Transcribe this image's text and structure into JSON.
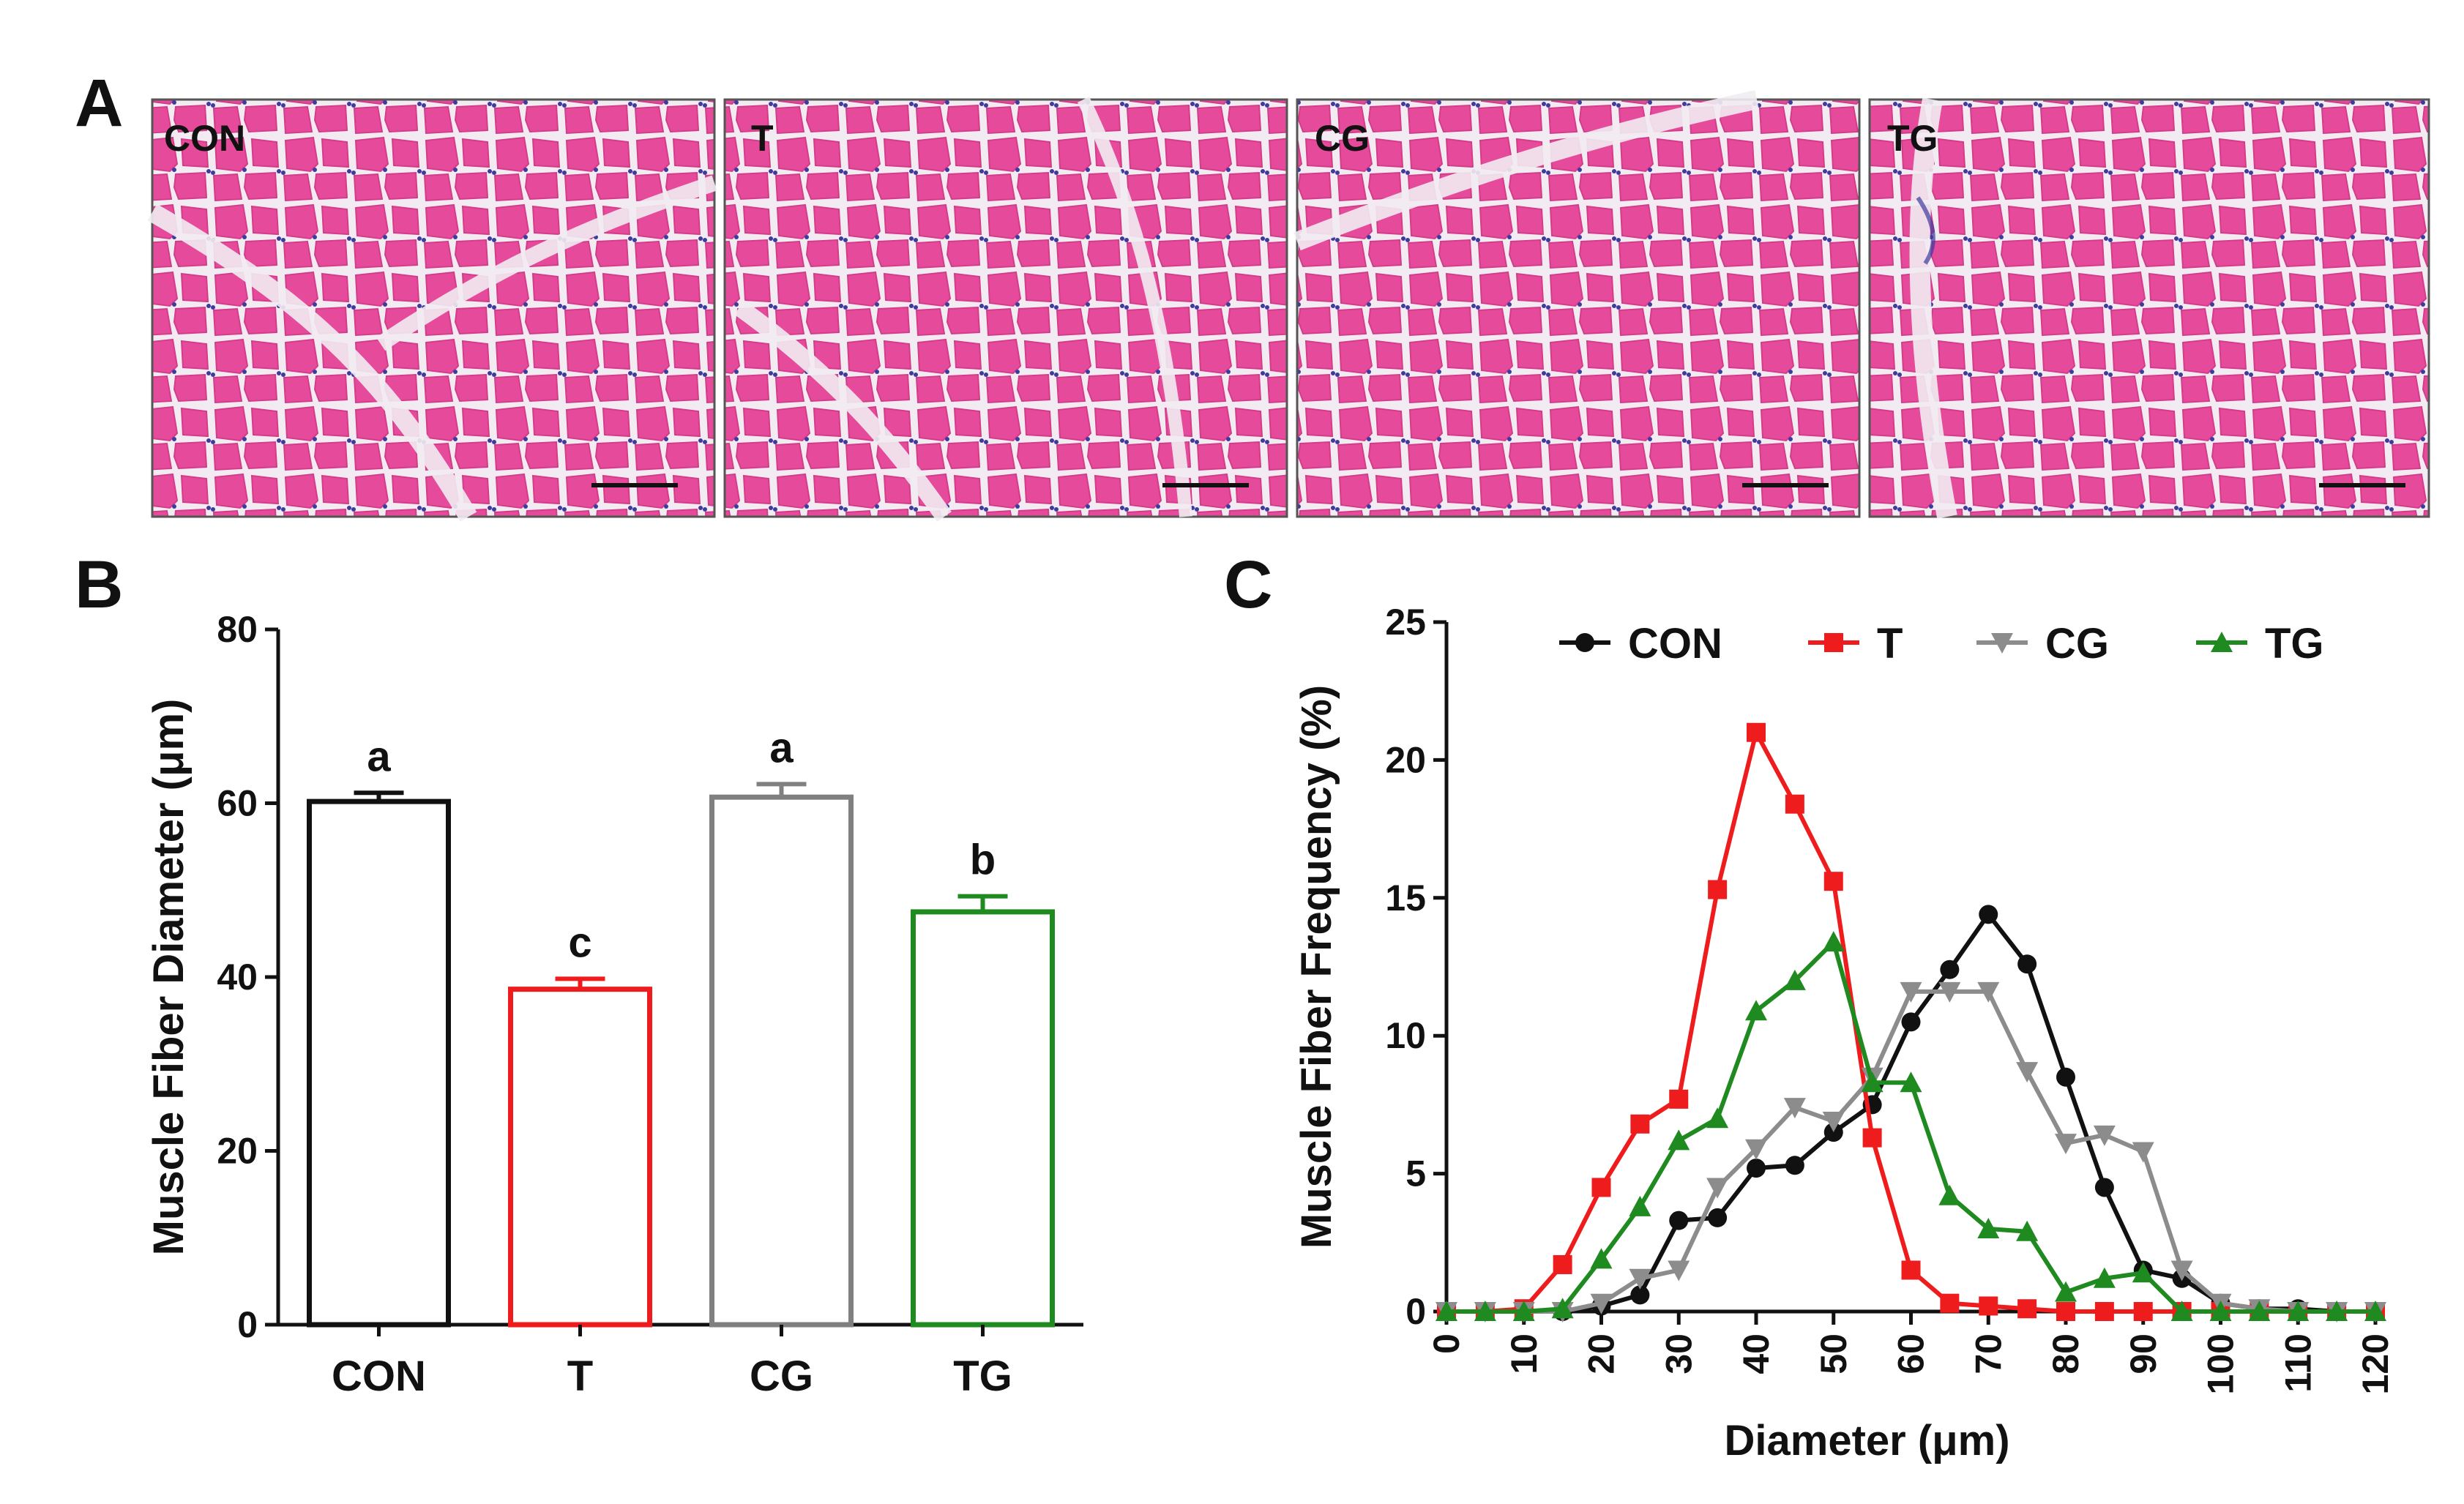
{
  "panels": {
    "a": {
      "letter": "A",
      "micrographs": [
        "CON",
        "T",
        "CG",
        "TG"
      ]
    },
    "b": {
      "letter": "B"
    },
    "c": {
      "letter": "C"
    }
  },
  "colors": {
    "tissue_bg": "#f2ecf2",
    "fiber": "#e64a9a",
    "fiber_edge": "#d43c8a",
    "nucleus": "#3f3a9e",
    "scale_bar": "#111111"
  },
  "chart_data": [
    {
      "type": "bar",
      "panel": "B",
      "categories": [
        "CON",
        "T",
        "CG",
        "TG"
      ],
      "values": [
        60.2,
        38.6,
        60.7,
        47.5
      ],
      "errors": [
        1.0,
        1.2,
        1.5,
        1.8
      ],
      "significance": [
        "a",
        "c",
        "a",
        "b"
      ],
      "colors": [
        "#111111",
        "#ee1c1c",
        "#808080",
        "#1f8a1f"
      ],
      "ylabel": "Muscle Fiber Diameter (μm)",
      "xlabel": "",
      "ylim": [
        0,
        80
      ],
      "yticks": [
        0,
        20,
        40,
        60,
        80
      ],
      "ytick_labels": [
        "0",
        "20",
        "40",
        "60",
        "80"
      ],
      "grid": false
    },
    {
      "type": "line",
      "panel": "C",
      "x": [
        0,
        5,
        10,
        15,
        20,
        25,
        30,
        35,
        40,
        45,
        50,
        55,
        60,
        65,
        70,
        75,
        80,
        85,
        90,
        95,
        100,
        105,
        110,
        115,
        120
      ],
      "series": [
        {
          "name": "CON",
          "color": "#111111",
          "marker": "circle",
          "values": [
            0,
            0,
            0,
            0,
            0.2,
            0.6,
            3.3,
            3.4,
            5.2,
            5.3,
            6.5,
            7.5,
            10.5,
            12.4,
            14.4,
            12.6,
            8.5,
            4.5,
            1.5,
            1.2,
            0.3,
            0.1,
            0.1,
            0,
            0
          ]
        },
        {
          "name": "T",
          "color": "#ee1c1c",
          "marker": "square",
          "values": [
            0,
            0,
            0.1,
            1.7,
            4.5,
            6.8,
            7.7,
            15.3,
            21.0,
            18.4,
            15.6,
            6.3,
            1.5,
            0.3,
            0.2,
            0.1,
            0,
            0,
            0,
            0,
            0,
            0,
            0,
            0,
            0
          ]
        },
        {
          "name": "CG",
          "color": "#8c8c8c",
          "marker": "triangle-down",
          "values": [
            0,
            0,
            0,
            0,
            0.3,
            1.2,
            1.5,
            4.5,
            5.9,
            7.4,
            6.9,
            8.5,
            11.6,
            11.6,
            11.6,
            8.7,
            6.1,
            6.4,
            5.8,
            1.5,
            0.3,
            0.1,
            0,
            0,
            0
          ]
        },
        {
          "name": "TG",
          "color": "#1f8a1f",
          "marker": "triangle-up",
          "values": [
            0,
            0,
            0,
            0.1,
            1.9,
            3.8,
            6.2,
            7.0,
            10.9,
            12.0,
            13.4,
            8.3,
            8.3,
            4.2,
            3.0,
            2.9,
            0.7,
            1.2,
            1.4,
            0,
            0,
            0,
            0,
            0,
            0
          ]
        }
      ],
      "legend": [
        "CON",
        "T",
        "CG",
        "TG"
      ],
      "legend_position": "top",
      "xlabel": "Diameter (μm)",
      "ylabel": "Muscle Fiber Frequency (%)",
      "xlim": [
        0,
        120
      ],
      "ylim": [
        0,
        25
      ],
      "xticks": [
        0,
        10,
        20,
        30,
        40,
        50,
        60,
        70,
        80,
        90,
        100,
        110,
        120
      ],
      "xtick_labels": [
        "0",
        "10",
        "20",
        "30",
        "40",
        "50",
        "60",
        "70",
        "80",
        "90",
        "100",
        "110",
        "120"
      ],
      "yticks": [
        0,
        5,
        10,
        15,
        20,
        25
      ],
      "ytick_labels": [
        "0",
        "5",
        "10",
        "15",
        "20",
        "25"
      ],
      "grid": false
    }
  ]
}
